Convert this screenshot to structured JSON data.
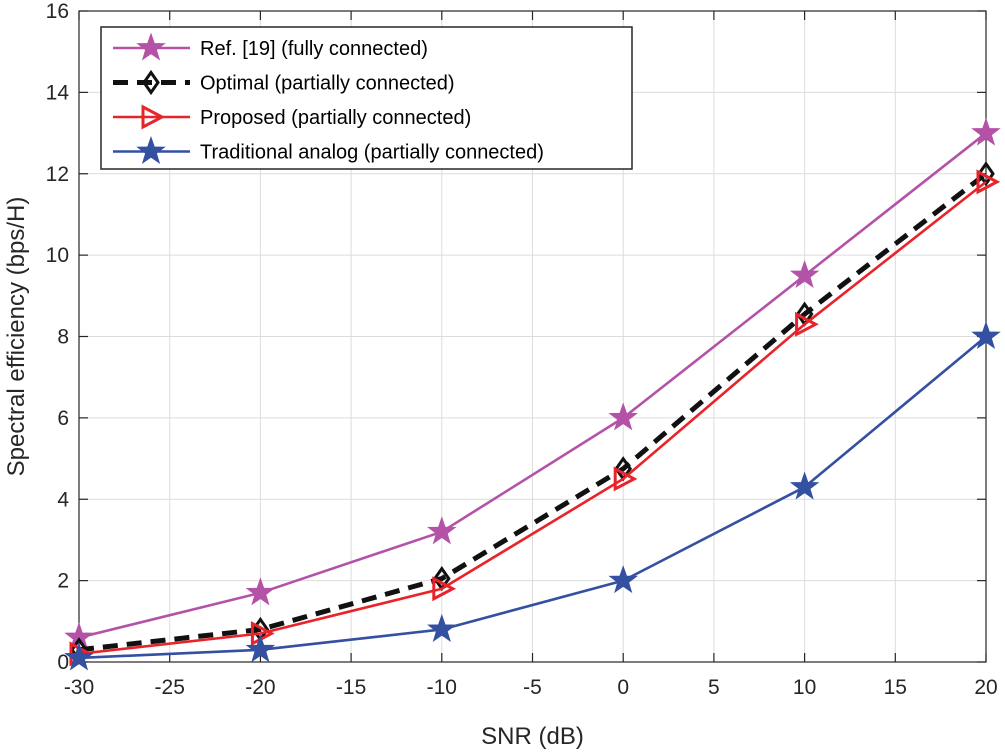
{
  "chart_data": {
    "type": "line",
    "title": "",
    "xlabel": "SNR (dB)",
    "ylabel": "Spectral efficiency (bps/H)",
    "xlim": [
      -30,
      20
    ],
    "ylim": [
      0,
      16
    ],
    "xticks": [
      -30,
      -25,
      -20,
      -15,
      -10,
      -5,
      0,
      5,
      10,
      15,
      20
    ],
    "yticks": [
      0,
      2,
      4,
      6,
      8,
      10,
      12,
      14,
      16
    ],
    "grid": true,
    "legend_position": "top-left",
    "x": [
      -30,
      -20,
      -10,
      0,
      10,
      20
    ],
    "series": [
      {
        "name": "Ref. [19] (fully connected)",
        "color": "#b452a8",
        "marker": "star",
        "dash": "solid",
        "values": [
          0.6,
          1.7,
          3.2,
          6.0,
          9.5,
          13.0
        ]
      },
      {
        "name": "Optimal (partially connected)",
        "color": "#111111",
        "marker": "diamond",
        "dash": "dashed",
        "values": [
          0.3,
          0.8,
          2.05,
          4.75,
          8.55,
          12.0
        ]
      },
      {
        "name": "Proposed (partially connected)",
        "color": "#e8232a",
        "marker": "triangle-right",
        "dash": "solid",
        "values": [
          0.2,
          0.7,
          1.8,
          4.5,
          8.3,
          11.8
        ]
      },
      {
        "name": "Traditional analog (partially connected)",
        "color": "#3450a0",
        "marker": "star",
        "dash": "solid",
        "values": [
          0.1,
          0.3,
          0.8,
          2.0,
          4.3,
          8.0
        ]
      }
    ]
  }
}
